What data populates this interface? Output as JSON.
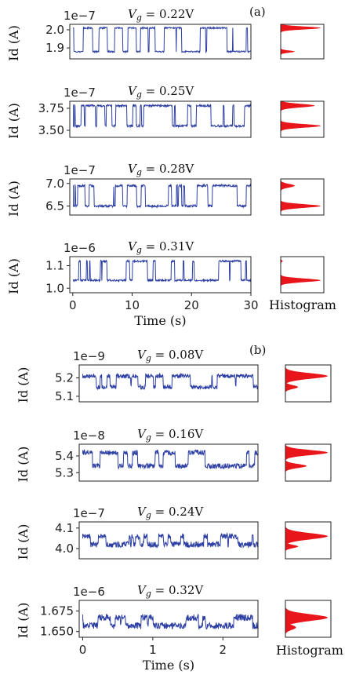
{
  "colors": {
    "trace": "#2d3fa3",
    "histogram": "#e8161a",
    "axis": "#222222"
  },
  "chart_data": [
    {
      "panel": "(a)",
      "type": "line",
      "multiplier": "1e−7",
      "vg_prefix": "V",
      "vg_sub": "g",
      "vg_value": " = 0.22V",
      "ylabel": "Id (A)",
      "ytick_labels": [
        "2.0",
        "1.9"
      ],
      "yticks": [
        2.0,
        1.9
      ],
      "ylim": [
        1.84,
        2.03
      ],
      "xlim": [
        -0.5,
        30
      ],
      "levels": [
        2.01,
        1.88
      ],
      "noise": 0.004,
      "hist": [
        {
          "center": 2.01,
          "height": 1.0,
          "width": 0.008
        },
        {
          "center": 1.88,
          "height": 0.35,
          "width": 0.006
        }
      ]
    },
    {
      "type": "line",
      "multiplier": "1e−7",
      "vg_prefix": "V",
      "vg_sub": "g",
      "vg_value": " = 0.25V",
      "ylabel": "Id (A)",
      "ytick_labels": [
        "3.75",
        "3.50"
      ],
      "yticks": [
        3.75,
        3.5
      ],
      "ylim": [
        3.42,
        3.83
      ],
      "xlim": [
        -0.5,
        30
      ],
      "levels": [
        3.78,
        3.55
      ],
      "noise": 0.012,
      "hist": [
        {
          "center": 3.78,
          "height": 0.85,
          "width": 0.02
        },
        {
          "center": 3.55,
          "height": 1.0,
          "width": 0.02
        }
      ]
    },
    {
      "type": "line",
      "multiplier": "1e−7",
      "vg_prefix": "V",
      "vg_sub": "g",
      "vg_value": " = 0.28V",
      "ylabel": "Id (A)",
      "ytick_labels": [
        "7.0",
        "6.5"
      ],
      "yticks": [
        7.0,
        6.5
      ],
      "ylim": [
        6.3,
        7.1
      ],
      "xlim": [
        -0.5,
        30
      ],
      "levels": [
        6.95,
        6.5
      ],
      "noise": 0.025,
      "hist": [
        {
          "center": 6.95,
          "height": 0.35,
          "width": 0.04
        },
        {
          "center": 6.5,
          "height": 1.0,
          "width": 0.04
        }
      ]
    },
    {
      "type": "line",
      "multiplier": "1e−6",
      "vg_prefix": "V",
      "vg_sub": "g",
      "vg_value": " = 0.31V",
      "ylabel": "Id (A)",
      "ytick_labels": [
        "1.1",
        "1.0"
      ],
      "yticks": [
        1.1,
        1.0
      ],
      "ylim": [
        0.98,
        1.14
      ],
      "xlim": [
        -0.5,
        30
      ],
      "levels": [
        1.035,
        1.12
      ],
      "noise": 0.004,
      "hist": [
        {
          "center": 1.035,
          "height": 1.0,
          "width": 0.008
        },
        {
          "center": 1.12,
          "height": 0.05,
          "width": 0.004
        }
      ],
      "xticks": [
        0,
        10,
        20,
        30
      ],
      "xtick_labels": [
        "0",
        "10",
        "20",
        "30"
      ],
      "xlabel": "Time (s)"
    },
    {
      "panel": "(b)",
      "type": "line",
      "multiplier": "1e−9",
      "vg_prefix": "V",
      "vg_sub": "g",
      "vg_value": " = 0.08V",
      "ylabel": "Id (A)",
      "ytick_labels": [
        "5.2",
        "5.1"
      ],
      "yticks": [
        5.2,
        5.1
      ],
      "ylim": [
        5.07,
        5.27
      ],
      "xlim": [
        -0.05,
        2.5
      ],
      "levels": [
        5.21,
        5.15
      ],
      "noise": 0.012,
      "hist": [
        {
          "center": 5.21,
          "height": 1.0,
          "width": 0.015
        },
        {
          "center": 5.15,
          "height": 0.3,
          "width": 0.01
        }
      ]
    },
    {
      "type": "line",
      "multiplier": "1e−8",
      "vg_prefix": "V",
      "vg_sub": "g",
      "vg_value": " = 0.16V",
      "ylabel": "Id (A)",
      "ytick_labels": [
        "5.4",
        "5.3"
      ],
      "yticks": [
        5.4,
        5.3
      ],
      "ylim": [
        5.25,
        5.47
      ],
      "xlim": [
        -0.05,
        2.5
      ],
      "levels": [
        5.42,
        5.34
      ],
      "noise": 0.015,
      "hist": [
        {
          "center": 5.42,
          "height": 1.0,
          "width": 0.015
        },
        {
          "center": 5.34,
          "height": 0.5,
          "width": 0.012
        }
      ]
    },
    {
      "type": "line",
      "multiplier": "1e−7",
      "vg_prefix": "V",
      "vg_sub": "g",
      "vg_value": " = 0.24V",
      "ylabel": "Id (A)",
      "ytick_labels": [
        "4.1",
        "4.0"
      ],
      "yticks": [
        4.1,
        4.0
      ],
      "ylim": [
        3.95,
        4.13
      ],
      "xlim": [
        -0.05,
        2.5
      ],
      "levels": [
        4.06,
        4.02
      ],
      "noise": 0.014,
      "hist": [
        {
          "center": 4.06,
          "height": 1.0,
          "width": 0.015
        },
        {
          "center": 4.01,
          "height": 0.3,
          "width": 0.008
        }
      ]
    },
    {
      "type": "line",
      "multiplier": "1e−6",
      "vg_prefix": "V",
      "vg_sub": "g",
      "vg_value": " = 0.32V",
      "ylabel": "Id (A)",
      "ytick_labels": [
        "1.675",
        "1.650"
      ],
      "yticks": [
        1.675,
        1.65
      ],
      "ylim": [
        1.643,
        1.688
      ],
      "xlim": [
        -0.05,
        2.5
      ],
      "levels": [
        1.667,
        1.657
      ],
      "noise": 0.004,
      "hist": [
        {
          "center": 1.667,
          "height": 1.0,
          "width": 0.004
        },
        {
          "center": 1.655,
          "height": 0.25,
          "width": 0.003
        }
      ],
      "xticks": [
        0,
        1,
        2
      ],
      "xtick_labels": [
        "0",
        "1",
        "2"
      ],
      "xlabel": "Time (s)"
    }
  ],
  "histogram_label": "Histogram",
  "histogram_label_b": "Histogram"
}
